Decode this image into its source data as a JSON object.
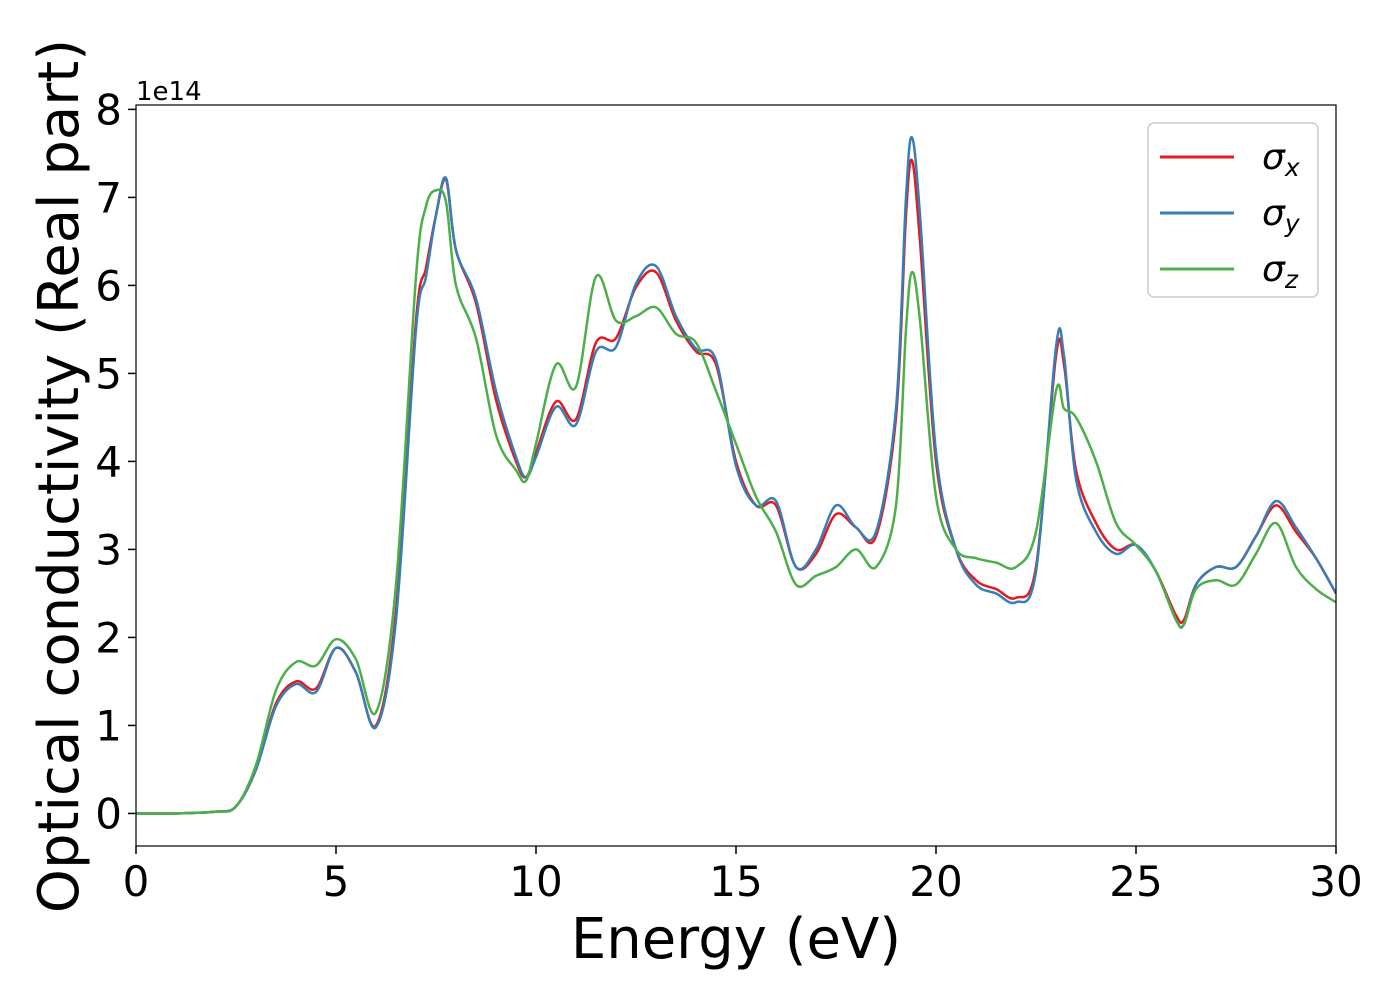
{
  "chart_data": {
    "type": "line",
    "xlabel": "Energy (eV)",
    "ylabel": "Optical conductivity (Real part)",
    "y_offset_label": "1e14",
    "x": [
      0,
      1,
      2,
      2.5,
      3,
      3.5,
      4,
      4.5,
      5,
      5.5,
      6,
      6.5,
      7,
      7.25,
      7.5,
      7.75,
      8,
      8.5,
      9,
      9.5,
      9.75,
      10,
      10.5,
      11,
      11.5,
      12,
      12.5,
      13,
      13.5,
      14,
      14.5,
      15,
      15.5,
      16,
      16.5,
      17,
      17.5,
      18,
      18.5,
      19,
      19.25,
      19.4,
      19.6,
      20,
      20.5,
      21,
      21.5,
      22,
      22.5,
      23,
      23.2,
      23.5,
      24,
      24.5,
      25,
      25.5,
      26,
      26.2,
      26.5,
      27,
      27.5,
      28,
      28.5,
      29,
      29.5,
      30
    ],
    "series": [
      {
        "name": "σx",
        "color": "#e41a1c",
        "values": [
          0,
          0,
          0.02,
          0.08,
          0.5,
          1.25,
          1.5,
          1.42,
          1.88,
          1.6,
          1.0,
          2.3,
          5.6,
          6.2,
          6.8,
          7.2,
          6.4,
          5.8,
          4.7,
          4.0,
          3.82,
          4.1,
          4.68,
          4.48,
          5.35,
          5.4,
          5.98,
          6.15,
          5.6,
          5.25,
          5.1,
          4.0,
          3.5,
          3.5,
          2.8,
          2.95,
          3.4,
          3.25,
          3.15,
          4.5,
          6.8,
          7.42,
          6.5,
          4.0,
          3.0,
          2.65,
          2.55,
          2.45,
          2.8,
          5.2,
          5.1,
          3.9,
          3.3,
          3.0,
          3.05,
          2.75,
          2.25,
          2.2,
          2.6,
          2.8,
          2.8,
          3.15,
          3.5,
          3.2,
          2.9,
          2.5
        ]
      },
      {
        "name": "σy",
        "color": "#377eb8",
        "values": [
          0,
          0,
          0.02,
          0.08,
          0.5,
          1.22,
          1.47,
          1.38,
          1.88,
          1.6,
          0.98,
          2.2,
          5.5,
          6.1,
          6.8,
          7.22,
          6.4,
          5.85,
          4.8,
          4.05,
          3.82,
          4.05,
          4.62,
          4.42,
          5.25,
          5.3,
          6.02,
          6.22,
          5.65,
          5.28,
          5.15,
          3.95,
          3.5,
          3.55,
          2.8,
          3.0,
          3.5,
          3.25,
          3.2,
          4.6,
          7.0,
          7.68,
          6.8,
          4.1,
          3.0,
          2.6,
          2.5,
          2.4,
          2.75,
          5.3,
          5.2,
          3.8,
          3.2,
          2.95,
          3.05,
          2.75,
          2.2,
          2.15,
          2.6,
          2.8,
          2.8,
          3.15,
          3.55,
          3.25,
          2.9,
          2.5
        ]
      },
      {
        "name": "σz",
        "color": "#4daf4a",
        "values": [
          0,
          0,
          0.02,
          0.08,
          0.55,
          1.4,
          1.72,
          1.68,
          1.98,
          1.75,
          1.15,
          2.6,
          6.1,
          6.9,
          7.08,
          6.95,
          6.0,
          5.4,
          4.3,
          3.9,
          3.78,
          4.2,
          5.1,
          4.85,
          6.1,
          5.6,
          5.65,
          5.75,
          5.45,
          5.35,
          4.8,
          4.2,
          3.6,
          3.2,
          2.6,
          2.7,
          2.8,
          3.0,
          2.8,
          3.5,
          5.5,
          6.15,
          5.6,
          3.6,
          3.0,
          2.9,
          2.85,
          2.8,
          3.2,
          4.8,
          4.6,
          4.5,
          4.0,
          3.3,
          3.05,
          2.75,
          2.2,
          2.15,
          2.55,
          2.65,
          2.6,
          2.95,
          3.3,
          2.8,
          2.55,
          2.4
        ]
      }
    ],
    "xlim": [
      0,
      30
    ],
    "xticks": [
      0,
      5,
      10,
      15,
      20,
      25,
      30
    ],
    "ylim": [
      -0.37,
      8.05
    ],
    "yticks": [
      0,
      1,
      2,
      3,
      4,
      5,
      6,
      7,
      8
    ],
    "legend": "upper right"
  }
}
